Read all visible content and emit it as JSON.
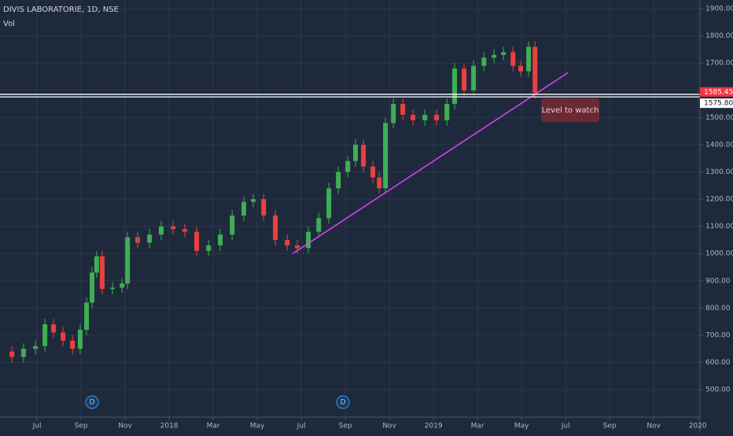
{
  "chart_data": {
    "type": "candlestick",
    "title": "DIVIS LABORATORIE, 1D, NSE",
    "subtitle": "Vol",
    "x": [
      -1.14,
      -0.61,
      -0.07,
      0.36,
      0.75,
      1.18,
      1.61,
      1.96,
      2.25,
      2.5,
      2.71,
      2.96,
      3.43,
      3.86,
      4.11,
      4.57,
      5.11,
      5.64,
      6.18,
      6.71,
      7.25,
      7.79,
      8.32,
      8.86,
      9.39,
      9.82,
      10.29,
      10.82,
      11.36,
      11.82,
      12.32,
      12.79,
      13.25,
      13.68,
      14.11,
      14.46,
      14.82,
      15.25,
      15.54,
      15.82,
      16.18,
      16.61,
      17.07,
      17.61,
      18.14,
      18.61,
      18.96,
      19.39,
      19.82,
      20.29,
      20.75,
      21.18,
      21.61,
      21.96,
      22.32,
      22.61
    ],
    "open": [
      640,
      620,
      650,
      660,
      740,
      710,
      680,
      650,
      720,
      820,
      930,
      990,
      870,
      875,
      890,
      1060,
      1040,
      1070,
      1100,
      1090,
      1080,
      1010,
      1030,
      1070,
      1140,
      1190,
      1200,
      1140,
      1050,
      1030,
      1020,
      1080,
      1130,
      1240,
      1300,
      1340,
      1400,
      1320,
      1280,
      1240,
      1480,
      1550,
      1510,
      1490,
      1510,
      1490,
      1550,
      1680,
      1600,
      1690,
      1720,
      1730,
      1740,
      1690,
      1670,
      1760
    ],
    "high": [
      660,
      670,
      680,
      760,
      760,
      730,
      700,
      740,
      840,
      950,
      1010,
      1010,
      895,
      910,
      1080,
      1080,
      1090,
      1120,
      1120,
      1110,
      1100,
      1050,
      1090,
      1160,
      1210,
      1220,
      1220,
      1160,
      1070,
      1050,
      1100,
      1150,
      1260,
      1320,
      1360,
      1420,
      1420,
      1340,
      1300,
      1500,
      1570,
      1570,
      1530,
      1530,
      1530,
      1570,
      1700,
      1700,
      1710,
      1740,
      1750,
      1760,
      1760,
      1710,
      1780,
      1780
    ],
    "low": [
      600,
      600,
      630,
      640,
      690,
      660,
      630,
      630,
      700,
      800,
      910,
      850,
      850,
      855,
      870,
      1020,
      1020,
      1050,
      1070,
      1060,
      990,
      990,
      1010,
      1050,
      1120,
      1170,
      1120,
      1030,
      1010,
      1000,
      1000,
      1060,
      1110,
      1220,
      1280,
      1320,
      1300,
      1260,
      1220,
      1220,
      1460,
      1490,
      1470,
      1470,
      1470,
      1470,
      1530,
      1580,
      1580,
      1670,
      1700,
      1710,
      1670,
      1650,
      1650,
      1570
    ],
    "close": [
      620,
      650,
      660,
      740,
      710,
      680,
      650,
      720,
      820,
      930,
      990,
      870,
      875,
      890,
      1060,
      1040,
      1070,
      1100,
      1090,
      1080,
      1010,
      1030,
      1070,
      1140,
      1190,
      1200,
      1140,
      1050,
      1030,
      1020,
      1080,
      1130,
      1240,
      1300,
      1340,
      1400,
      1320,
      1280,
      1240,
      1480,
      1550,
      1510,
      1490,
      1510,
      1490,
      1550,
      1680,
      1600,
      1690,
      1720,
      1730,
      1740,
      1690,
      1670,
      1760,
      1590
    ],
    "up_color": "#3fae55",
    "down_color": "#e8413f",
    "xlim": [
      -1.68,
      30.1
    ],
    "ylim": [
      399,
      1932
    ],
    "xticks": [
      {
        "value": 0,
        "label": "Jul"
      },
      {
        "value": 2,
        "label": "Sep"
      },
      {
        "value": 4,
        "label": "Nov"
      },
      {
        "value": 6,
        "label": "2018"
      },
      {
        "value": 8,
        "label": "Mar"
      },
      {
        "value": 10,
        "label": "May"
      },
      {
        "value": 12,
        "label": "Jul"
      },
      {
        "value": 14,
        "label": "Sep"
      },
      {
        "value": 16,
        "label": "Nov"
      },
      {
        "value": 18,
        "label": "2019"
      },
      {
        "value": 20,
        "label": "Mar"
      },
      {
        "value": 22,
        "label": "May"
      },
      {
        "value": 24,
        "label": "Jul"
      },
      {
        "value": 26,
        "label": "Sep"
      },
      {
        "value": 28,
        "label": "Nov"
      },
      {
        "value": 30,
        "label": "2020"
      }
    ],
    "yticks": [
      {
        "value": 500,
        "label": "500.00"
      },
      {
        "value": 600,
        "label": "600.00"
      },
      {
        "value": 700,
        "label": "700.00"
      },
      {
        "value": 800,
        "label": "800.00"
      },
      {
        "value": 900,
        "label": "900.00"
      },
      {
        "value": 1000,
        "label": "1000.00"
      },
      {
        "value": 1100,
        "label": "1100.00"
      },
      {
        "value": 1200,
        "label": "1200.00"
      },
      {
        "value": 1300,
        "label": "1300.00"
      },
      {
        "value": 1400,
        "label": "1400.00"
      },
      {
        "value": 1500,
        "label": "1500.00"
      },
      {
        "value": 1600,
        "label": "1600.00"
      },
      {
        "value": 1700,
        "label": "1700.00"
      },
      {
        "value": 1800,
        "label": "1800.00"
      },
      {
        "value": 1900,
        "label": "1900.00"
      }
    ],
    "grid": true,
    "hlines": {
      "values": [
        1585.45,
        1575.8
      ],
      "value_labels": [
        "1585.45",
        "1575.80"
      ],
      "colors": [
        "#f23645",
        "#ffffff"
      ]
    },
    "trendline": {
      "x": [
        11.61,
        24.11
      ],
      "y": [
        1000,
        1665
      ],
      "color": "#e040fb"
    },
    "events": {
      "x": [
        2.5,
        13.89
      ],
      "labels": [
        "D",
        "D"
      ]
    },
    "annotation": "Level to watch"
  }
}
